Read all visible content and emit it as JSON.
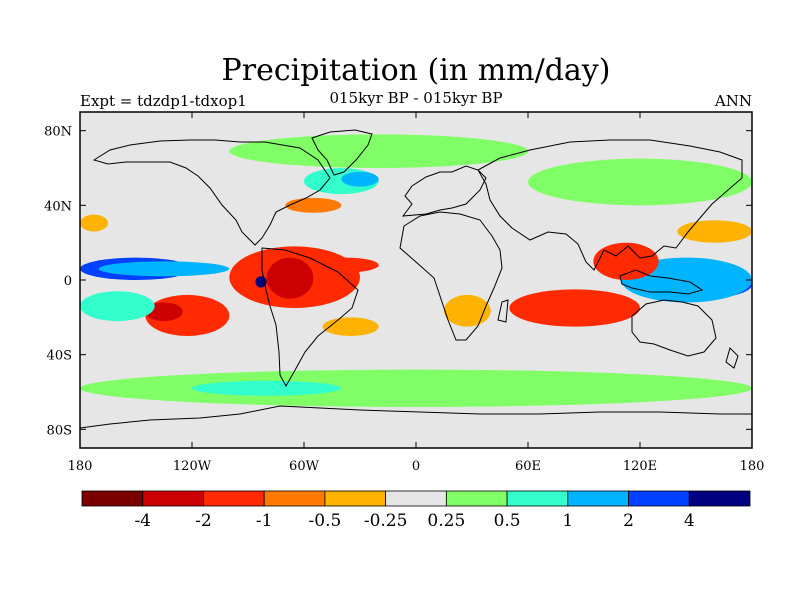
{
  "chart_data": {
    "type": "heatmap",
    "title": "Precipitation (in mm/day)",
    "subtitle_left": "Expt = tdzdp1-tdxop1",
    "subtitle_center": "015kyr BP - 015kyr BP",
    "subtitle_right": "ANN",
    "projection": "cylindrical equidistant",
    "x_range": [
      -180,
      180
    ],
    "y_range": [
      -90,
      90
    ],
    "x_ticks": [
      {
        "value": -180,
        "label": "180"
      },
      {
        "value": -120,
        "label": "120W"
      },
      {
        "value": -60,
        "label": "60W"
      },
      {
        "value": 0,
        "label": "0"
      },
      {
        "value": 60,
        "label": "60E"
      },
      {
        "value": 120,
        "label": "120E"
      },
      {
        "value": 180,
        "label": "180"
      }
    ],
    "y_ticks": [
      {
        "value": 80,
        "label": "80N"
      },
      {
        "value": 40,
        "label": "40N"
      },
      {
        "value": 0,
        "label": "0"
      },
      {
        "value": -40,
        "label": "40S"
      },
      {
        "value": -80,
        "label": "80S"
      }
    ],
    "colorbar": {
      "levels": [
        "-4",
        "-2",
        "-1",
        "-0.5",
        "-0.25",
        "0.25",
        "0.5",
        "1",
        "2",
        "4"
      ],
      "colors": [
        "#7a0000",
        "#cc0000",
        "#ff2a00",
        "#ff7a00",
        "#ffb300",
        "#e6e6e6",
        "#80ff66",
        "#33ffcc",
        "#00b4ff",
        "#0040ff",
        "#000080"
      ]
    },
    "regions": [
      {
        "name": "tropical-eastern-pacific-wet",
        "bin": 9,
        "lon": [
          -180,
          -120
        ],
        "lat": [
          0,
          12
        ]
      },
      {
        "name": "equatorial-east-pacific",
        "bin": 8,
        "lon": [
          -170,
          -100
        ],
        "lat": [
          2,
          10
        ]
      },
      {
        "name": "south-pacific-dry-band",
        "bin": 2,
        "lon": [
          -145,
          -100
        ],
        "lat": [
          -30,
          -8
        ]
      },
      {
        "name": "south-pacific-dry-core",
        "bin": 1,
        "lon": [
          -145,
          -125
        ],
        "lat": [
          -22,
          -12
        ]
      },
      {
        "name": "south-pacific-wet",
        "bin": 7,
        "lon": [
          -180,
          -140
        ],
        "lat": [
          -22,
          -6
        ]
      },
      {
        "name": "north-pacific-dry",
        "bin": 4,
        "lon": [
          -180,
          -165
        ],
        "lat": [
          26,
          35
        ]
      },
      {
        "name": "caribbean-amazon-dry",
        "bin": 2,
        "lon": [
          -100,
          -30
        ],
        "lat": [
          -15,
          18
        ]
      },
      {
        "name": "amazon-dry-core",
        "bin": 1,
        "lon": [
          -80,
          -55
        ],
        "lat": [
          -10,
          12
        ]
      },
      {
        "name": "amazon-wet-patch",
        "bin": 10,
        "lon": [
          -86,
          -80
        ],
        "lat": [
          -4,
          2
        ]
      },
      {
        "name": "atlantic-itcz-dry",
        "bin": 2,
        "lon": [
          -55,
          -20
        ],
        "lat": [
          4,
          12
        ]
      },
      {
        "name": "north-atlantic-dry",
        "bin": 3,
        "lon": [
          -70,
          -40
        ],
        "lat": [
          36,
          44
        ]
      },
      {
        "name": "north-atlantic-wet",
        "bin": 7,
        "lon": [
          -60,
          -20
        ],
        "lat": [
          46,
          60
        ]
      },
      {
        "name": "north-atlantic-wet-core",
        "bin": 8,
        "lon": [
          -40,
          -20
        ],
        "lat": [
          50,
          58
        ]
      },
      {
        "name": "south-atlantic-dry",
        "bin": 4,
        "lon": [
          -50,
          -20
        ],
        "lat": [
          -30,
          -20
        ]
      },
      {
        "name": "south-indian-dry",
        "bin": 2,
        "lon": [
          50,
          120
        ],
        "lat": [
          -25,
          -5
        ]
      },
      {
        "name": "southern-africa-dry",
        "bin": 4,
        "lon": [
          15,
          40
        ],
        "lat": [
          -25,
          -8
        ]
      },
      {
        "name": "maritime-continent-wet",
        "bin": 9,
        "lon": [
          125,
          180
        ],
        "lat": [
          -10,
          5
        ]
      },
      {
        "name": "western-pacific-wet",
        "bin": 8,
        "lon": [
          110,
          180
        ],
        "lat": [
          -12,
          12
        ]
      },
      {
        "name": "indochina-dry",
        "bin": 2,
        "lon": [
          95,
          130
        ],
        "lat": [
          0,
          20
        ]
      },
      {
        "name": "north-west-pacific-dry",
        "bin": 4,
        "lon": [
          140,
          180
        ],
        "lat": [
          20,
          32
        ]
      },
      {
        "name": "arctic-wet",
        "bin": 6,
        "lon": [
          -100,
          60
        ],
        "lat": [
          60,
          78
        ]
      },
      {
        "name": "eurasia-wet",
        "bin": 6,
        "lon": [
          60,
          180
        ],
        "lat": [
          40,
          65
        ]
      },
      {
        "name": "southern-ocean-wet",
        "bin": 6,
        "lon": [
          -180,
          180
        ],
        "lat": [
          -68,
          -48
        ]
      },
      {
        "name": "southern-ocean-wet-core",
        "bin": 7,
        "lon": [
          -120,
          -40
        ],
        "lat": [
          -62,
          -54
        ]
      }
    ]
  }
}
